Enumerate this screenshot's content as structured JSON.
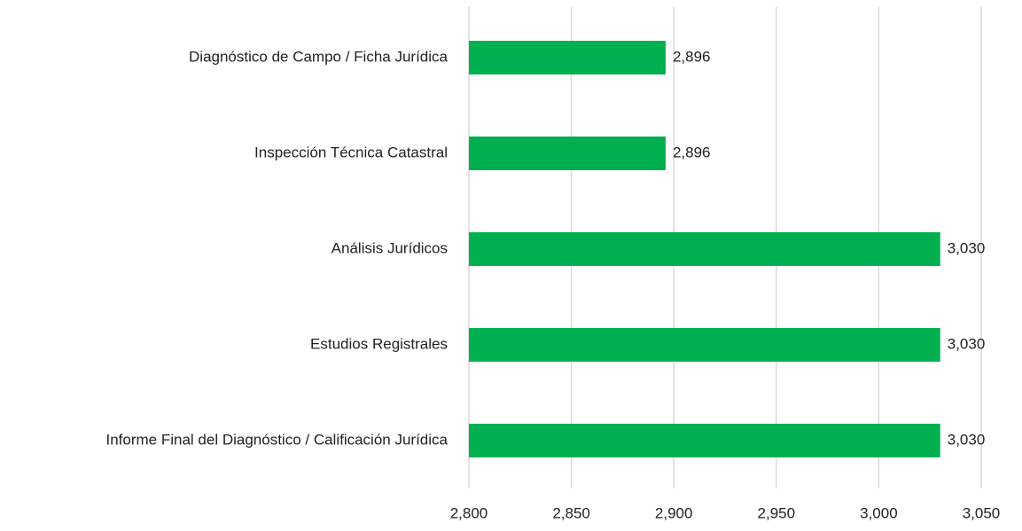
{
  "chart_data": {
    "type": "bar",
    "categories": [
      "Diagnóstico de Campo / Ficha Jurídica",
      "Inspección Técnica Catastral",
      "Análisis Jurídicos",
      "Estudios Registrales",
      "Informe Final del Diagnóstico / Calificación Jurídica"
    ],
    "values": [
      2896,
      2896,
      3030,
      3030,
      3030
    ],
    "value_labels": [
      "2,896",
      "2,896",
      "3,030",
      "3,030",
      "3,030"
    ],
    "color": "#00b050",
    "xlim": [
      2800,
      3050
    ],
    "xticks": [
      {
        "value": 2800,
        "label": "2,800"
      },
      {
        "value": 2850,
        "label": "2,850"
      },
      {
        "value": 2900,
        "label": "2,900"
      },
      {
        "value": 2950,
        "label": "2,950"
      },
      {
        "value": 3000,
        "label": "3,000"
      },
      {
        "value": 3050,
        "label": "3,050"
      }
    ],
    "grid": true
  }
}
